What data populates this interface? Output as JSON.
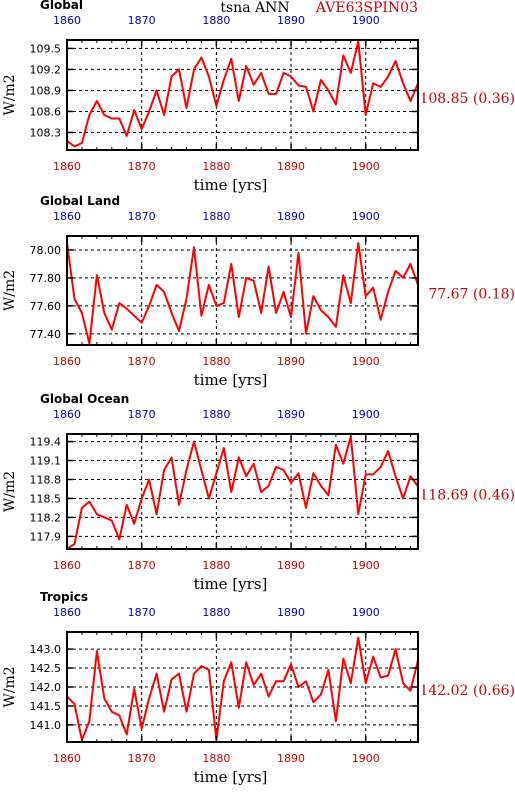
{
  "header": {
    "title": "tsna ANN",
    "run_id": "AVE63SPIN03"
  },
  "chart_data": [
    {
      "type": "line",
      "panel_title": "Global",
      "top_tick_labels": [
        "1860",
        "1870",
        "1880",
        "1890",
        "1900"
      ],
      "bottom_tick_labels": [
        "1860",
        "1870",
        "1880",
        "1890",
        "1900"
      ],
      "xlabel": "time [yrs]",
      "ylabel": "W/m2",
      "xlim": [
        1860,
        1907
      ],
      "ylim": [
        108.05,
        109.62
      ],
      "y_ticks": [
        "108.3",
        "108.6",
        "108.9",
        "109.2",
        "109.5"
      ],
      "grid": true,
      "series_color": "#ff0000",
      "stats_label": "108.85 (0.36)",
      "series": [
        {
          "x": [
            1860,
            1861,
            1862,
            1863,
            1864,
            1865,
            1866,
            1867,
            1868,
            1869,
            1870,
            1871,
            1872,
            1873,
            1874,
            1875,
            1876,
            1877,
            1878,
            1879,
            1880,
            1881,
            1882,
            1883,
            1884,
            1885,
            1886,
            1887,
            1888,
            1889,
            1890,
            1891,
            1892,
            1893,
            1894,
            1895,
            1896,
            1897,
            1898,
            1899,
            1900,
            1901,
            1902,
            1903,
            1904,
            1905,
            1906,
            1907
          ],
          "values": [
            108.18,
            108.1,
            108.15,
            108.55,
            108.75,
            108.55,
            108.5,
            108.5,
            108.25,
            108.62,
            108.35,
            108.6,
            108.9,
            108.55,
            109.1,
            109.2,
            108.65,
            109.2,
            109.37,
            109.1,
            108.68,
            109.05,
            109.35,
            108.75,
            109.25,
            108.98,
            109.15,
            108.85,
            108.85,
            109.15,
            109.1,
            108.97,
            108.95,
            108.6,
            109.05,
            108.9,
            108.7,
            109.4,
            109.15,
            109.6,
            108.55,
            109.0,
            108.95,
            109.1,
            109.32,
            109.0,
            108.75,
            109.0
          ]
        }
      ]
    },
    {
      "type": "line",
      "panel_title": "Global Land",
      "top_tick_labels": [
        "1860",
        "1870",
        "1880",
        "1890",
        "1900"
      ],
      "bottom_tick_labels": [
        "1860",
        "1870",
        "1880",
        "1890",
        "1900"
      ],
      "xlabel": "time [yrs]",
      "ylabel": "W/m2",
      "xlim": [
        1860,
        1907
      ],
      "ylim": [
        77.32,
        78.1
      ],
      "y_ticks": [
        "77.40",
        "77.60",
        "77.80",
        "78.00"
      ],
      "grid": true,
      "series_color": "#ff0000",
      "stats_label": "77.67 (0.18)",
      "series": [
        {
          "x": [
            1860,
            1861,
            1862,
            1863,
            1864,
            1865,
            1866,
            1867,
            1868,
            1869,
            1870,
            1871,
            1872,
            1873,
            1874,
            1875,
            1876,
            1877,
            1878,
            1879,
            1880,
            1881,
            1882,
            1883,
            1884,
            1885,
            1886,
            1887,
            1888,
            1889,
            1890,
            1891,
            1892,
            1893,
            1894,
            1895,
            1896,
            1897,
            1898,
            1899,
            1900,
            1901,
            1902,
            1903,
            1904,
            1905,
            1906,
            1907
          ],
          "values": [
            78.05,
            77.65,
            77.55,
            77.33,
            77.82,
            77.55,
            77.43,
            77.62,
            77.58,
            77.53,
            77.48,
            77.6,
            77.75,
            77.7,
            77.55,
            77.42,
            77.65,
            78.02,
            77.53,
            77.75,
            77.6,
            77.62,
            77.9,
            77.52,
            77.8,
            77.78,
            77.55,
            77.88,
            77.55,
            77.7,
            77.52,
            77.98,
            77.4,
            77.67,
            77.57,
            77.52,
            77.45,
            77.82,
            77.62,
            78.05,
            77.67,
            77.73,
            77.5,
            77.7,
            77.85,
            77.8,
            77.9,
            77.75
          ]
        }
      ]
    },
    {
      "type": "line",
      "panel_title": "Global Ocean",
      "top_tick_labels": [
        "1860",
        "1870",
        "1880",
        "1890",
        "1900"
      ],
      "bottom_tick_labels": [
        "1860",
        "1870",
        "1880",
        "1890",
        "1900"
      ],
      "xlabel": "time [yrs]",
      "ylabel": "W/m2",
      "xlim": [
        1860,
        1907
      ],
      "ylim": [
        117.7,
        119.52
      ],
      "y_ticks": [
        "117.9",
        "118.2",
        "118.5",
        "118.8",
        "119.1",
        "119.4"
      ],
      "grid": true,
      "series_color": "#ff0000",
      "stats_label": "118.69 (0.46)",
      "series": [
        {
          "x": [
            1860,
            1861,
            1862,
            1863,
            1864,
            1865,
            1866,
            1867,
            1868,
            1869,
            1870,
            1871,
            1872,
            1873,
            1874,
            1875,
            1876,
            1877,
            1878,
            1879,
            1880,
            1881,
            1882,
            1883,
            1884,
            1885,
            1886,
            1887,
            1888,
            1889,
            1890,
            1891,
            1892,
            1893,
            1894,
            1895,
            1896,
            1897,
            1898,
            1899,
            1900,
            1901,
            1902,
            1903,
            1904,
            1905,
            1906,
            1907
          ],
          "values": [
            117.7,
            117.78,
            118.35,
            118.45,
            118.25,
            118.2,
            118.15,
            117.85,
            118.4,
            118.1,
            118.5,
            118.8,
            118.25,
            118.95,
            119.15,
            118.4,
            118.95,
            119.4,
            118.95,
            118.5,
            118.9,
            119.3,
            118.6,
            119.15,
            118.85,
            119.05,
            118.6,
            118.7,
            119.0,
            118.95,
            118.75,
            118.9,
            118.35,
            118.9,
            118.7,
            118.55,
            119.35,
            119.05,
            119.48,
            118.25,
            118.88,
            118.88,
            119.0,
            119.25,
            118.85,
            118.5,
            118.85,
            118.69
          ]
        }
      ]
    },
    {
      "type": "line",
      "panel_title": "Tropics",
      "top_tick_labels": [
        "1860",
        "1870",
        "1880",
        "1890",
        "1900"
      ],
      "bottom_tick_labels": [
        "1860",
        "1870",
        "1880",
        "1890",
        "1900"
      ],
      "xlabel": "time [yrs]",
      "ylabel": "W/m2",
      "xlim": [
        1860,
        1907
      ],
      "ylim": [
        140.55,
        143.45
      ],
      "y_ticks": [
        "141.0",
        "141.5",
        "142.0",
        "142.5",
        "143.0"
      ],
      "grid": true,
      "series_color": "#ff0000",
      "stats_label": "142.02 (0.66)",
      "series": [
        {
          "x": [
            1860,
            1861,
            1862,
            1863,
            1864,
            1865,
            1866,
            1867,
            1868,
            1869,
            1870,
            1871,
            1872,
            1873,
            1874,
            1875,
            1876,
            1877,
            1878,
            1879,
            1880,
            1881,
            1882,
            1883,
            1884,
            1885,
            1886,
            1887,
            1888,
            1889,
            1890,
            1891,
            1892,
            1893,
            1894,
            1895,
            1896,
            1897,
            1898,
            1899,
            1900,
            1901,
            1902,
            1903,
            1904,
            1905,
            1906,
            1907
          ],
          "values": [
            141.75,
            141.55,
            140.6,
            141.1,
            142.95,
            141.7,
            141.35,
            141.25,
            140.75,
            141.95,
            140.9,
            141.7,
            142.35,
            141.35,
            142.2,
            142.35,
            141.35,
            142.35,
            142.55,
            142.45,
            140.6,
            142.15,
            142.65,
            141.45,
            142.65,
            142.05,
            142.35,
            141.75,
            142.15,
            142.15,
            142.6,
            142.0,
            142.15,
            141.6,
            141.8,
            142.45,
            141.1,
            142.75,
            142.1,
            143.3,
            142.1,
            142.8,
            142.25,
            142.3,
            143.0,
            142.1,
            141.9,
            142.7
          ]
        }
      ]
    }
  ]
}
